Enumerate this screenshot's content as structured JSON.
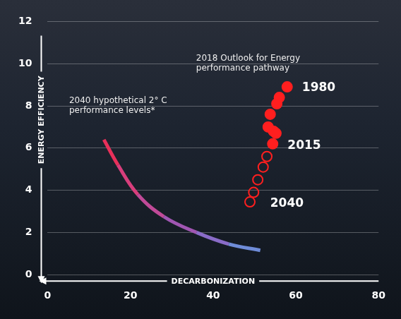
{
  "chart_data": {
    "type": "scatter",
    "xlabel": "DECARBONIZATION",
    "ylabel": "ENERGY EFFICIENCY",
    "xlim": [
      0,
      80
    ],
    "xticks": [
      0,
      20,
      40,
      60,
      80
    ],
    "ylim": [
      0,
      12
    ],
    "yticks": [
      0,
      2,
      4,
      6,
      8,
      10,
      12
    ],
    "grid": "y",
    "series": [
      {
        "type": "scatter",
        "marker": "circle",
        "color": "#ff1f1f",
        "x": [
          57.9,
          56.0,
          55.4,
          53.8,
          53.3,
          54.6,
          55.2,
          54.4
        ],
        "values": [
          8.9,
          8.4,
          8.1,
          7.6,
          7.0,
          6.8,
          6.7,
          6.2
        ]
      },
      {
        "type": "scatter",
        "marker": "circle_open",
        "color": "#ff1f1f",
        "x": [
          53.0,
          52.1,
          50.8,
          49.8,
          48.9
        ],
        "values": [
          5.6,
          5.1,
          4.5,
          3.9,
          3.45
        ]
      },
      {
        "type": "line",
        "marker": "none",
        "line_style": "solid",
        "colors": [
          "#e8305a",
          "#d83e7c",
          "#c04a98",
          "#a056b2",
          "#8a6cc8",
          "#6f8cd8",
          "#5aaae0"
        ],
        "x": [
          13.6,
          17.0,
          21.8,
          28.1,
          36.0,
          43.8,
          51.4
        ],
        "values": [
          6.4,
          5.2,
          3.8,
          2.75,
          2.0,
          1.45,
          1.15
        ]
      }
    ],
    "annotations": [
      {
        "text": [
          "1980"
        ],
        "x": 61.5,
        "y": 8.85
      },
      {
        "text": [
          "2015"
        ],
        "x": 58.0,
        "y": 6.1
      },
      {
        "text": [
          "2040"
        ],
        "x": 53.8,
        "y": 3.35
      },
      {
        "text": [
          "2018 Outlook for Energy",
          "performance pathway"
        ],
        "x": 35.9,
        "y": 10.0
      },
      {
        "text": [
          "2040 hypothetical 2° C",
          "performance levels*"
        ],
        "x": 5.2,
        "y": 8.0
      }
    ]
  }
}
